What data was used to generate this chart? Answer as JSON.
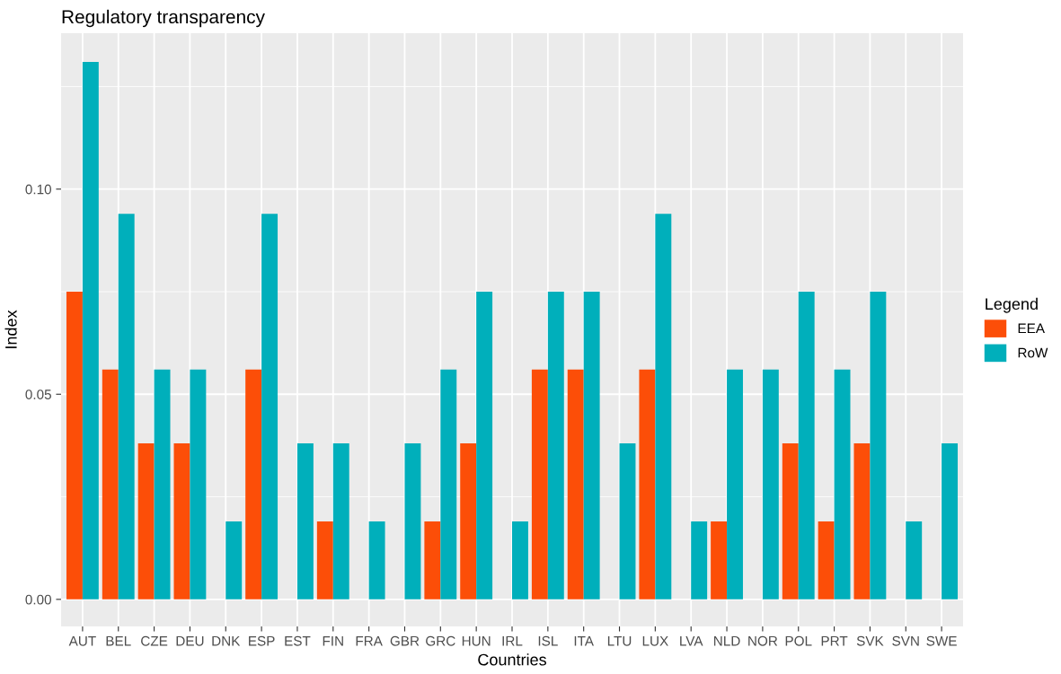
{
  "chart_data": {
    "type": "bar",
    "title": "Regulatory transparency",
    "xlabel": "Countries",
    "ylabel": "Index",
    "legend_title": "Legend",
    "legend": "right",
    "grid": true,
    "categories": [
      "AUT",
      "BEL",
      "CZE",
      "DEU",
      "DNK",
      "ESP",
      "EST",
      "FIN",
      "FRA",
      "GBR",
      "GRC",
      "HUN",
      "IRL",
      "ISL",
      "ITA",
      "LTU",
      "LUX",
      "LVA",
      "NLD",
      "NOR",
      "POL",
      "PRT",
      "SVK",
      "SVN",
      "SWE"
    ],
    "series": [
      {
        "name": "EEA",
        "color": "#fc4e08",
        "values": [
          0.075,
          0.056,
          0.038,
          0.038,
          0,
          0.056,
          0,
          0.019,
          0,
          0,
          0.019,
          0.038,
          0,
          0.056,
          0.056,
          0,
          0.056,
          0,
          0.019,
          0,
          0.038,
          0.019,
          0.038,
          0,
          0
        ]
      },
      {
        "name": "RoW",
        "color": "#00afbb",
        "values": [
          0.131,
          0.094,
          0.056,
          0.056,
          0.019,
          0.094,
          0.038,
          0.038,
          0.019,
          0.038,
          0.056,
          0.075,
          0.019,
          0.075,
          0.075,
          0.038,
          0.094,
          0.019,
          0.056,
          0.056,
          0.075,
          0.056,
          0.075,
          0.019,
          0.038
        ]
      }
    ],
    "ylim": [
      -0.0066,
      0.138
    ],
    "yticks": [
      {
        "value": 0,
        "label": "0.00"
      },
      {
        "value": 0.05,
        "label": "0.05"
      },
      {
        "value": 0.1,
        "label": "0.10"
      }
    ]
  }
}
